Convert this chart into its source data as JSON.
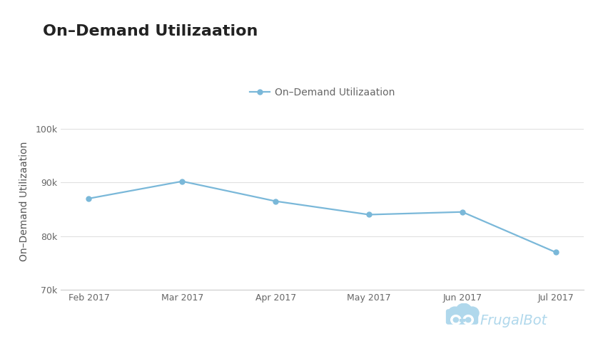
{
  "title": "On–Demand Utilizaation",
  "ylabel": "On–Demand Utilizaation",
  "legend_label": "On–Demand Utilizaation",
  "x_labels": [
    "Feb 2017",
    "Mar 2017",
    "Apr 2017",
    "May 2017",
    "Jun 2017",
    "Jul 2017"
  ],
  "y_values": [
    87000,
    90200,
    86500,
    84000,
    84500,
    77000
  ],
  "ylim": [
    70000,
    103000
  ],
  "yticks": [
    70000,
    80000,
    90000,
    100000
  ],
  "ytick_labels": [
    "70k",
    "80k",
    "90k",
    "100k"
  ],
  "line_color": "#7ab8d9",
  "marker_color": "#7ab8d9",
  "marker_size": 5,
  "line_width": 1.6,
  "background_color": "#ffffff",
  "title_fontsize": 16,
  "axis_label_fontsize": 10,
  "tick_fontsize": 9,
  "legend_fontsize": 10,
  "grid_color": "#e0e0e0",
  "spine_color": "#cccccc",
  "frugalbot_color": "#b0d8ec",
  "frugalbot_fontsize": 14,
  "title_color": "#222222",
  "tick_color": "#666666",
  "ylabel_color": "#555555"
}
